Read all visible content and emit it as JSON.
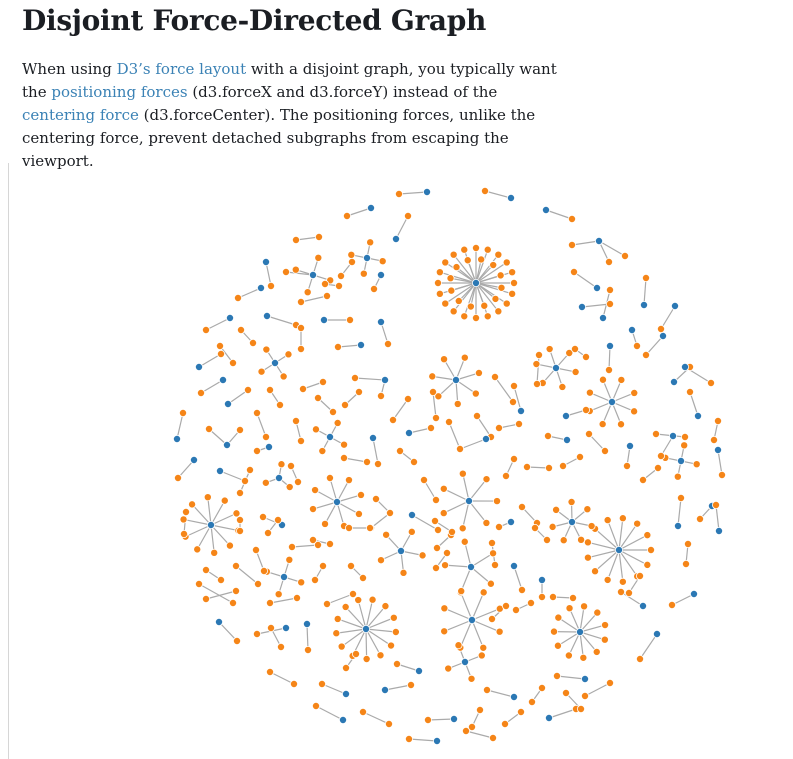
{
  "page": {
    "title": "Disjoint Force-Directed Graph",
    "intro": {
      "t1": "When using ",
      "link_force_layout": "D3’s force layout",
      "t2": " with a disjoint graph, you typically want the ",
      "link_positioning_forces": "positioning forces",
      "t3": " (d3.forceX and d3.forceY) instead of the ",
      "link_centering_force": "centering force",
      "t4": " (d3.forceCenter). The positioning forces, unlike the centering force, prevent detached subgraphs from escaping the viewport."
    }
  },
  "graph": {
    "node_color_orange": "#f58518",
    "node_color_blue": "#2b78b4",
    "link_color": "#aaaaaa"
  }
}
